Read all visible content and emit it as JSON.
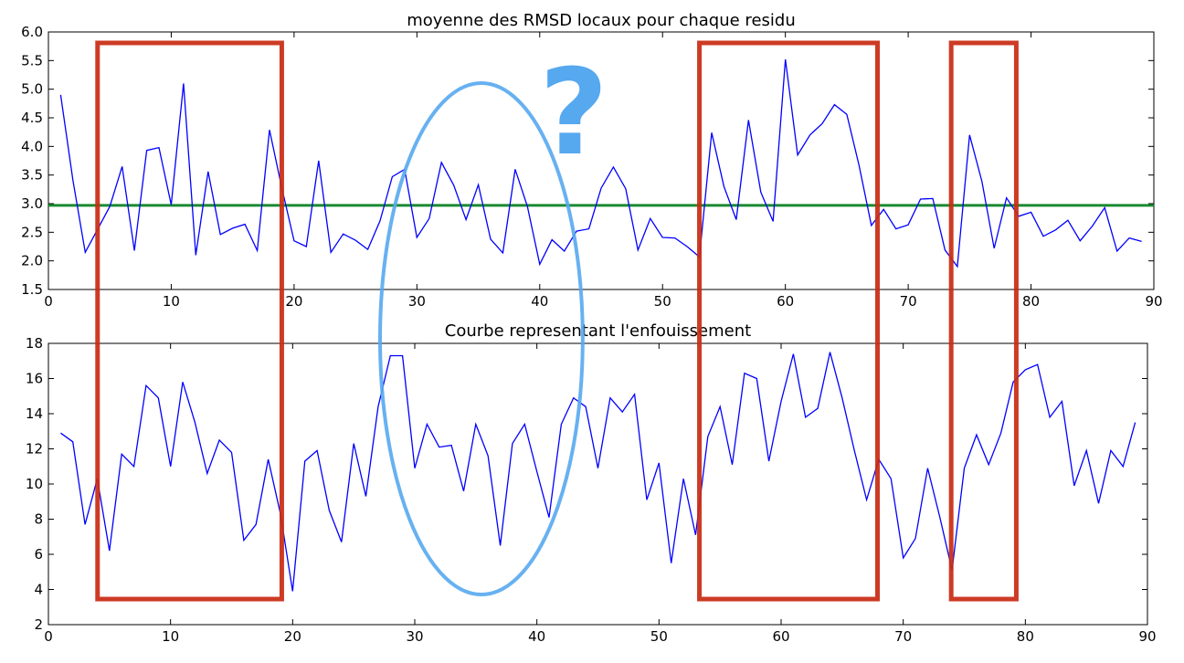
{
  "chart_data": [
    {
      "type": "line",
      "title": "moyenne des RMSD locaux pour chaque residu",
      "xlabel": "",
      "ylabel": "",
      "xlim": [
        0,
        90
      ],
      "ylim": [
        1.5,
        6.0
      ],
      "xticks": [
        0,
        10,
        20,
        30,
        40,
        50,
        60,
        70,
        80,
        90
      ],
      "yticks": [
        "1.5",
        "2.0",
        "2.5",
        "3.0",
        "3.5",
        "4.0",
        "4.5",
        "5.0",
        "5.5",
        "6.0"
      ],
      "grid": false,
      "series": [
        {
          "color": "#0000ff",
          "x": [
            1,
            2,
            3,
            4,
            5,
            6,
            7,
            8,
            9,
            10,
            11,
            12,
            13,
            14,
            15,
            16,
            17,
            18,
            19,
            20,
            21,
            22,
            23,
            24,
            25,
            26,
            27,
            28,
            29,
            30,
            31,
            32,
            33,
            34,
            35,
            36,
            37,
            38,
            39,
            40,
            41,
            42,
            43,
            44,
            45,
            46,
            47,
            48,
            49,
            50,
            51,
            52,
            53,
            54,
            55,
            56,
            57,
            58,
            59,
            60,
            61,
            62,
            63,
            64,
            65,
            66,
            67,
            68,
            69,
            70,
            71,
            72,
            73,
            74,
            75,
            76,
            77,
            78,
            79,
            80,
            81,
            82,
            83,
            84,
            85,
            86,
            87,
            88,
            89
          ],
          "values": [
            4.9,
            3.4,
            2.15,
            2.55,
            2.95,
            3.65,
            2.18,
            3.93,
            3.98,
            2.98,
            5.1,
            2.1,
            3.56,
            2.46,
            2.57,
            2.64,
            2.18,
            4.29,
            3.28,
            2.35,
            2.25,
            3.75,
            2.15,
            2.47,
            2.36,
            2.2,
            2.7,
            3.47,
            3.6,
            2.41,
            2.74,
            3.72,
            3.32,
            2.72,
            3.33,
            2.38,
            2.14,
            3.6,
            2.95,
            1.94,
            2.37,
            2.17,
            2.52,
            2.56,
            3.27,
            3.64,
            3.26,
            2.19,
            2.74,
            2.41,
            2.4,
            2.25,
            2.07,
            4.24,
            3.3,
            2.72,
            4.46,
            3.2,
            2.69,
            5.52,
            3.85,
            4.2,
            4.4,
            4.73,
            4.56,
            3.67,
            2.62,
            2.9,
            2.56,
            2.63,
            3.08,
            3.09,
            2.19,
            1.9,
            4.2,
            3.39,
            2.22,
            3.1,
            2.78,
            2.85,
            2.43,
            2.54,
            2.71,
            2.35,
            2.61,
            2.93,
            2.17,
            2.4,
            2.34
          ]
        }
      ],
      "hline": {
        "y": 2.97,
        "color": "#1a8a30"
      }
    },
    {
      "type": "line",
      "title": "Courbe representant l'enfouissement",
      "xlabel": "",
      "ylabel": "",
      "xlim": [
        0,
        90
      ],
      "ylim": [
        2,
        18
      ],
      "xticks": [
        0,
        10,
        20,
        30,
        40,
        50,
        60,
        70,
        80,
        90
      ],
      "yticks": [
        "2",
        "4",
        "6",
        "8",
        "10",
        "12",
        "14",
        "16",
        "18"
      ],
      "grid": false,
      "series": [
        {
          "color": "#0000ff",
          "x": [
            1,
            2,
            3,
            4,
            5,
            6,
            7,
            8,
            9,
            10,
            11,
            12,
            13,
            14,
            15,
            16,
            17,
            18,
            19,
            20,
            21,
            22,
            23,
            24,
            25,
            26,
            27,
            28,
            29,
            30,
            31,
            32,
            33,
            34,
            35,
            36,
            37,
            38,
            39,
            40,
            41,
            42,
            43,
            44,
            45,
            46,
            47,
            48,
            49,
            50,
            51,
            52,
            53,
            54,
            55,
            56,
            57,
            58,
            59,
            60,
            61,
            62,
            63,
            64,
            65,
            66,
            67,
            68,
            69,
            70,
            71,
            72,
            73,
            74,
            75,
            76,
            77,
            78,
            79,
            80,
            81,
            82,
            83,
            84,
            85,
            86,
            87,
            88,
            89
          ],
          "values": [
            12.9,
            12.4,
            7.7,
            10.3,
            6.2,
            11.7,
            11.0,
            15.6,
            14.9,
            11.0,
            15.8,
            13.5,
            10.6,
            12.5,
            11.8,
            6.8,
            7.7,
            11.4,
            8.3,
            3.9,
            11.3,
            11.9,
            8.5,
            6.7,
            12.3,
            9.3,
            14.4,
            17.3,
            17.3,
            10.9,
            13.4,
            12.1,
            12.2,
            9.6,
            13.4,
            11.6,
            6.5,
            12.3,
            13.4,
            10.7,
            8.1,
            13.4,
            14.9,
            14.4,
            10.9,
            14.9,
            14.1,
            15.1,
            9.1,
            11.2,
            5.5,
            10.3,
            7.1,
            12.7,
            14.4,
            11.1,
            16.3,
            16.0,
            11.3,
            14.7,
            17.4,
            13.8,
            14.3,
            17.5,
            14.9,
            11.9,
            9.1,
            11.4,
            10.3,
            5.8,
            6.9,
            10.9,
            8.1,
            5.1,
            10.9,
            12.8,
            11.1,
            12.9,
            15.8,
            16.5,
            16.8,
            13.8,
            14.7,
            9.9,
            11.9,
            8.9,
            11.9,
            11.0,
            13.5
          ]
        }
      ]
    }
  ],
  "annotations": {
    "question_mark": "?",
    "highlight_color": "#c92a12",
    "ellipse_color": "#56a8ef",
    "highlight_regions_x": [
      [
        4,
        19
      ],
      [
        53,
        67.5
      ],
      [
        73.5,
        78.8
      ]
    ],
    "ellipse_x_range": [
      27,
      43.5
    ]
  }
}
